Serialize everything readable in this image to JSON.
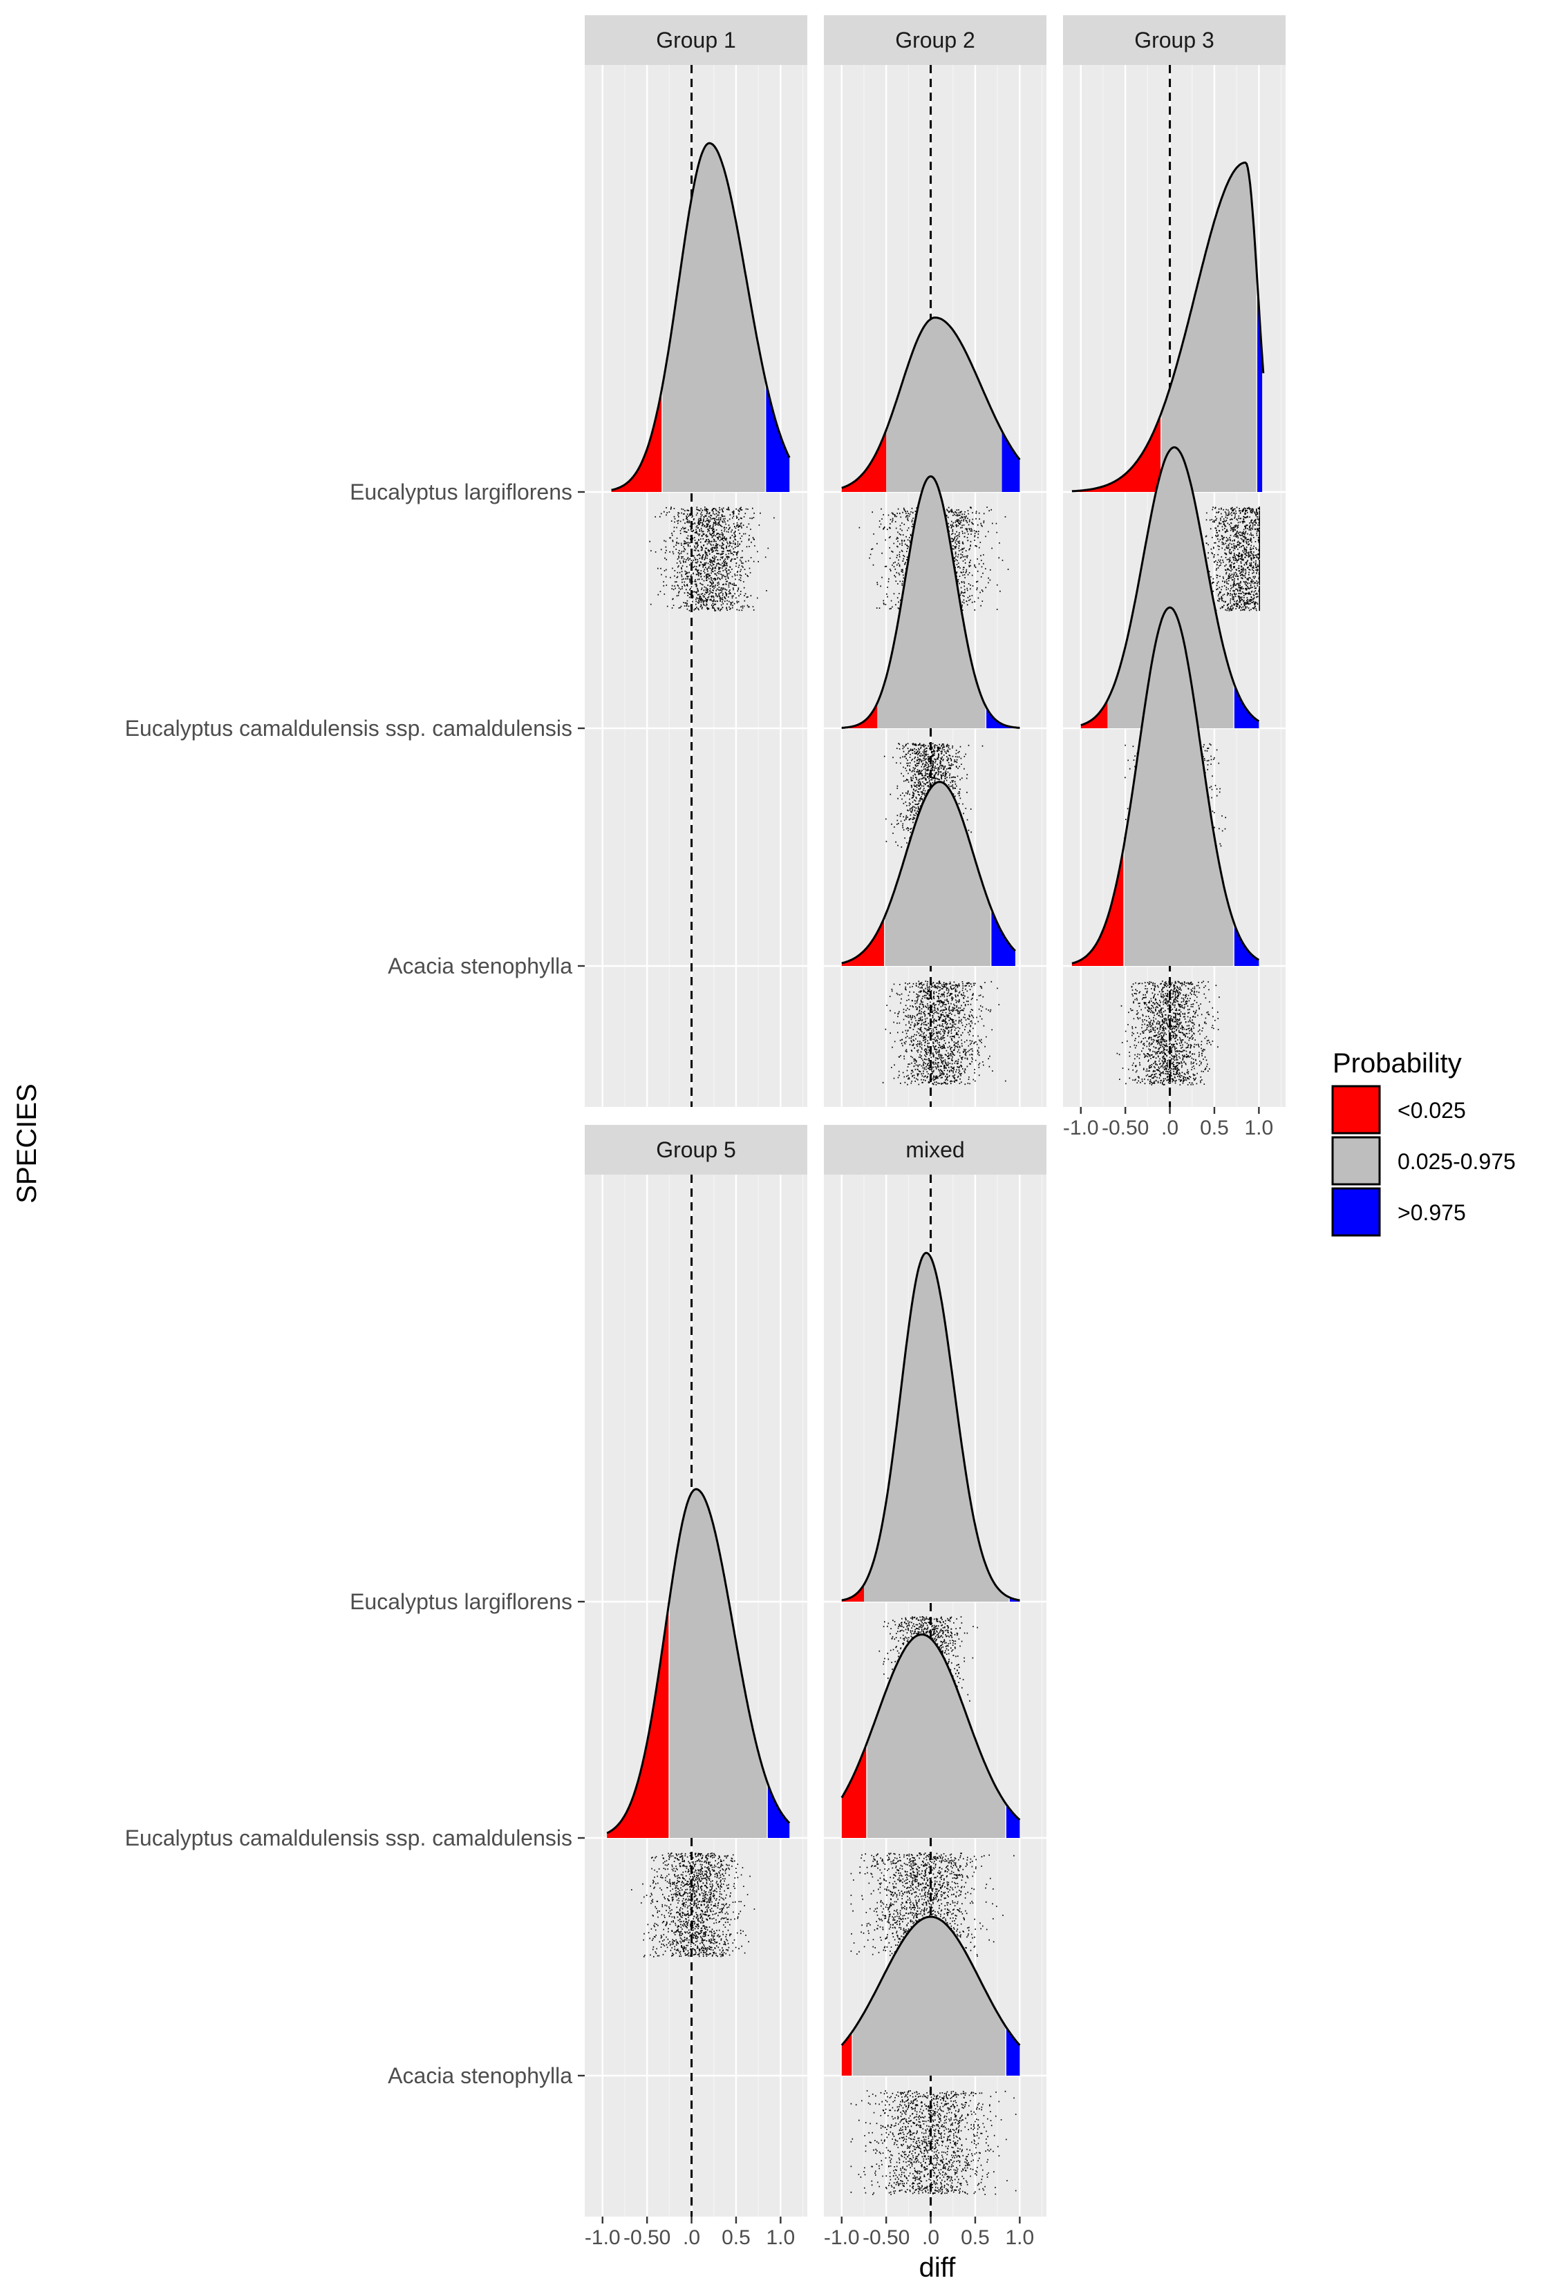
{
  "chart_data": {
    "type": "ridgeline-density",
    "xlabel": "diff",
    "ylabel": "SPECIES",
    "xlim": [
      -1.2,
      1.3
    ],
    "x_ticks": [
      -1.0,
      -0.5,
      0.0,
      0.5,
      1.0
    ],
    "x_tick_labels": [
      "-1.0",
      "-0.50",
      ".0",
      "0.5",
      "1.0"
    ],
    "reference_line_x": 0,
    "categories": [
      "Eucalyptus largiflorens",
      "Eucalyptus camaldulensis ssp. camaldulensis",
      "Acacia stenophylla"
    ],
    "colors": {
      "panel_bg": "#ebebeb",
      "grid": "#ffffff",
      "strip_bg": "#d9d9d9",
      "low": "#ff0000",
      "mid": "#bebebe",
      "high": "#0000ff"
    },
    "legend": {
      "title": "Probability",
      "position": "right",
      "entries": [
        {
          "label": "<0.025",
          "color": "#ff0000"
        },
        {
          "label": "0.025-0.975",
          "color": "#bebebe"
        },
        {
          "label": ">0.975",
          "color": "#0000ff"
        }
      ]
    },
    "panels": [
      {
        "name": "Group 1",
        "series": [
          {
            "species": "Eucalyptus largiflorens",
            "peak": 0.2,
            "spread": 0.38,
            "skew": 0.1,
            "min": -0.9,
            "max": 1.1,
            "low_cut": -0.33,
            "high_cut": 0.83,
            "height": 1.8
          }
        ]
      },
      {
        "name": "Group 2",
        "series": [
          {
            "species": "Eucalyptus largiflorens",
            "peak": 0.05,
            "spread": 0.45,
            "skew": 0.15,
            "min": -1.0,
            "max": 1.0,
            "low_cut": -0.5,
            "high_cut": 0.8,
            "height": 0.9
          },
          {
            "species": "Eucalyptus camaldulensis ssp. camaldulensis",
            "peak": 0.0,
            "spread": 0.28,
            "skew": 0.0,
            "min": -1.0,
            "max": 1.0,
            "low_cut": -0.6,
            "high_cut": 0.62,
            "height": 1.3
          },
          {
            "species": "Acacia stenophylla",
            "peak": 0.1,
            "spread": 0.38,
            "skew": 0.0,
            "min": -1.0,
            "max": 0.95,
            "low_cut": -0.52,
            "high_cut": 0.68,
            "height": 0.95
          }
        ]
      },
      {
        "name": "Group 3",
        "series": [
          {
            "species": "Eucalyptus largiflorens",
            "peak": 0.85,
            "spread": 0.35,
            "skew": -0.6,
            "min": -1.1,
            "max": 1.05,
            "low_cut": -0.1,
            "high_cut": 0.98,
            "height": 1.7
          },
          {
            "species": "Eucalyptus camaldulensis ssp. camaldulensis",
            "peak": 0.05,
            "spread": 0.35,
            "skew": 0.0,
            "min": -1.0,
            "max": 1.0,
            "low_cut": -0.7,
            "high_cut": 0.72,
            "height": 1.45
          },
          {
            "species": "Acacia stenophylla",
            "peak": 0.0,
            "spread": 0.35,
            "skew": 0.0,
            "min": -1.1,
            "max": 1.0,
            "low_cut": -0.52,
            "high_cut": 0.72,
            "height": 1.85
          }
        ]
      },
      {
        "name": "Group 5",
        "series": [
          {
            "species": "Eucalyptus camaldulensis ssp. camaldulensis",
            "peak": 0.05,
            "spread": 0.38,
            "skew": 0.1,
            "min": -0.95,
            "max": 1.1,
            "low_cut": -0.25,
            "high_cut": 0.85,
            "height": 1.8
          }
        ]
      },
      {
        "name": "mixed",
        "series": [
          {
            "species": "Eucalyptus largiflorens",
            "peak": -0.05,
            "spread": 0.3,
            "skew": 0.05,
            "min": -1.0,
            "max": 1.0,
            "low_cut": -0.75,
            "high_cut": 0.88,
            "height": 1.8
          },
          {
            "species": "Eucalyptus camaldulensis ssp. camaldulensis",
            "peak": -0.1,
            "spread": 0.5,
            "skew": 0.0,
            "min": -1.0,
            "max": 1.0,
            "low_cut": -0.72,
            "high_cut": 0.85,
            "height": 1.05
          },
          {
            "species": "Acacia stenophylla",
            "peak": 0.0,
            "spread": 0.55,
            "skew": 0.0,
            "min": -1.0,
            "max": 1.0,
            "low_cut": -0.88,
            "high_cut": 0.85,
            "height": 0.82
          }
        ]
      }
    ]
  }
}
